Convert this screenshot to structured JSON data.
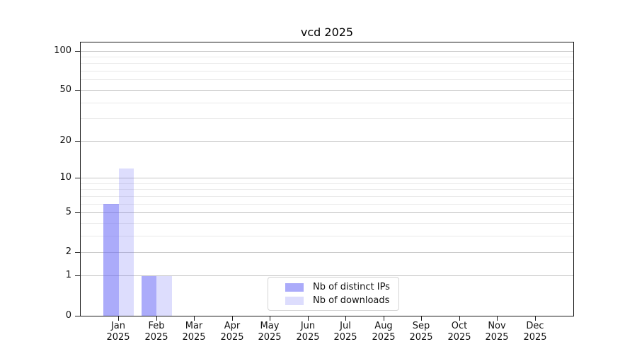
{
  "chart_data": {
    "type": "bar",
    "title": "vcd 2025",
    "x": {
      "categories": [
        "Jan",
        "Feb",
        "Mar",
        "Apr",
        "May",
        "Jun",
        "Jul",
        "Aug",
        "Sep",
        "Oct",
        "Nov",
        "Dec"
      ],
      "year": "2025"
    },
    "y": {
      "scale": "log1p",
      "range": [
        0,
        100
      ],
      "major_ticks": [
        0,
        1,
        2,
        5,
        10,
        20,
        50,
        100
      ],
      "minor_gridlines": [
        3,
        4,
        6,
        7,
        8,
        9,
        30,
        40,
        60,
        70,
        80,
        90
      ]
    },
    "series": [
      {
        "name": "Nb of distinct IPs",
        "color": "#6666f6",
        "alpha": 0.55,
        "values": [
          6,
          1,
          0,
          0,
          0,
          0,
          0,
          0,
          0,
          0,
          0,
          0
        ]
      },
      {
        "name": "Nb of downloads",
        "color": "#6666f6",
        "alpha": 0.22,
        "values": [
          12,
          1,
          0,
          0,
          0,
          0,
          0,
          0,
          0,
          0,
          0,
          0
        ]
      }
    ],
    "legend": {
      "position": "lower-center"
    },
    "colors": {
      "major_grid": "#c4c4c4",
      "minor_grid": "#eaeaea",
      "spine": "#1a1a1a",
      "background": "#ffffff"
    }
  }
}
